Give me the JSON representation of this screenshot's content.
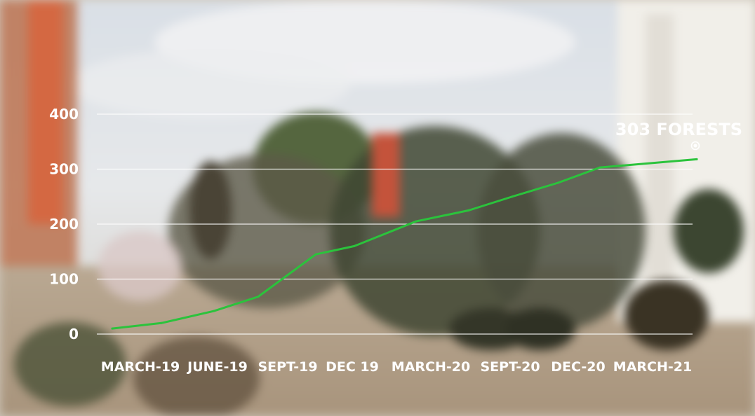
{
  "chart_data": {
    "type": "line",
    "title": "",
    "xlabel": "",
    "ylabel": "",
    "ylim": [
      0,
      400
    ],
    "yticks": [
      "0",
      "100",
      "200",
      "300",
      "400"
    ],
    "grid": true,
    "categories": [
      "MARCH-19",
      "JUNE-19",
      "SEPT-19",
      "DEC 19",
      "MARCH-20",
      "SEPT-20",
      "DEC-20",
      "MARCH-21"
    ],
    "series": [
      {
        "name": "",
        "color": "#2bc33c",
        "points": [
          {
            "x": "MARCH-19",
            "y": 10
          },
          {
            "x": "APRIL-19",
            "y": 20
          },
          {
            "x": "JUNE-19",
            "y": 42
          },
          {
            "x": "JULY-19",
            "y": 68
          },
          {
            "x": "SEPT-19",
            "y": 145
          },
          {
            "x": "DEC 19",
            "y": 160
          },
          {
            "x": "MARCH-20",
            "y": 205
          },
          {
            "x": "JUNE-20",
            "y": 225
          },
          {
            "x": "SEPT-20",
            "y": 250
          },
          {
            "x": "DEC-20",
            "y": 275
          },
          {
            "x": "MARCH-21",
            "y": 303
          },
          {
            "x": "APRIL-21",
            "y": 318
          }
        ]
      }
    ],
    "annotation": {
      "text": "303 FORESTS",
      "x": "MARCH-21",
      "y": 303
    }
  },
  "colors": {
    "line": "#2bc33c",
    "text": "#ffffff",
    "grid": "#ffffff"
  }
}
